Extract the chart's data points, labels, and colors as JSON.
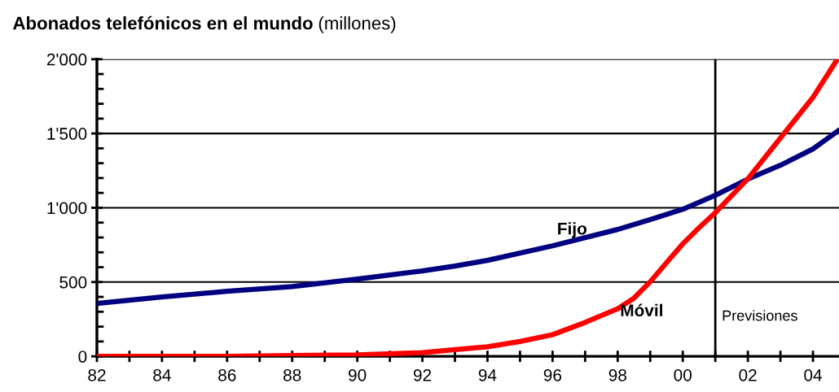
{
  "chart_data": {
    "type": "line",
    "title": "Abonados telefónicos en el mundo",
    "subtitle": "(millones)",
    "series": [
      {
        "name": "Fijo",
        "color": "#000080",
        "x": [
          1982,
          1984,
          1986,
          1988,
          1990,
          1992,
          1993,
          1994,
          1996,
          1998,
          1999,
          2000,
          2001,
          2002,
          2003,
          2004,
          2004.8
        ],
        "values": [
          356,
          400,
          438,
          470,
          520,
          575,
          608,
          646,
          744,
          854,
          920,
          990,
          1084,
          1193,
          1286,
          1396,
          1522
        ]
      },
      {
        "name": "Móvil",
        "color": "#ff0000",
        "x": [
          1982,
          1986,
          1988,
          1990,
          1992,
          1993,
          1994,
          1995,
          1996,
          1997,
          1998,
          1998.5,
          1999,
          1999.5,
          2000,
          2000.5,
          2001,
          2002,
          2003,
          2004,
          2004.75
        ],
        "values": [
          0,
          0,
          5,
          10,
          25,
          45,
          64,
          100,
          146,
          228,
          320,
          392,
          502,
          630,
          757,
          866,
          967,
          1195,
          1469,
          1743,
          2000
        ]
      }
    ],
    "xlim": [
      1982,
      2004.8
    ],
    "xticks": [
      {
        "value": 1982,
        "label": "82"
      },
      {
        "value": 1983,
        "label": null
      },
      {
        "value": 1984,
        "label": "84"
      },
      {
        "value": 1985,
        "label": null
      },
      {
        "value": 1986,
        "label": "86"
      },
      {
        "value": 1987,
        "label": null
      },
      {
        "value": 1988,
        "label": "88"
      },
      {
        "value": 1989,
        "label": null
      },
      {
        "value": 1990,
        "label": "90"
      },
      {
        "value": 1991,
        "label": null
      },
      {
        "value": 1992,
        "label": "92"
      },
      {
        "value": 1993,
        "label": null
      },
      {
        "value": 1994,
        "label": "94"
      },
      {
        "value": 1995,
        "label": null
      },
      {
        "value": 1996,
        "label": "96"
      },
      {
        "value": 1997,
        "label": null
      },
      {
        "value": 1998,
        "label": "98"
      },
      {
        "value": 1999,
        "label": null
      },
      {
        "value": 2000,
        "label": "00"
      },
      {
        "value": 2001,
        "label": null
      },
      {
        "value": 2002,
        "label": "02"
      },
      {
        "value": 2003,
        "label": null
      },
      {
        "value": 2004,
        "label": "04"
      }
    ],
    "ylim": [
      0,
      2000
    ],
    "yticks": [
      0,
      500,
      {
        "value": 1000,
        "label": "1'000"
      },
      {
        "value": 1500,
        "label": "1'500"
      },
      {
        "value": 2000,
        "label": "2'000"
      }
    ],
    "grid": "y",
    "legend": false,
    "marker": "none",
    "line_style": "solid",
    "ref_lines": [
      {
        "axis": "x",
        "value": 2001,
        "label": "Previsiones",
        "color": "#000000"
      }
    ]
  }
}
